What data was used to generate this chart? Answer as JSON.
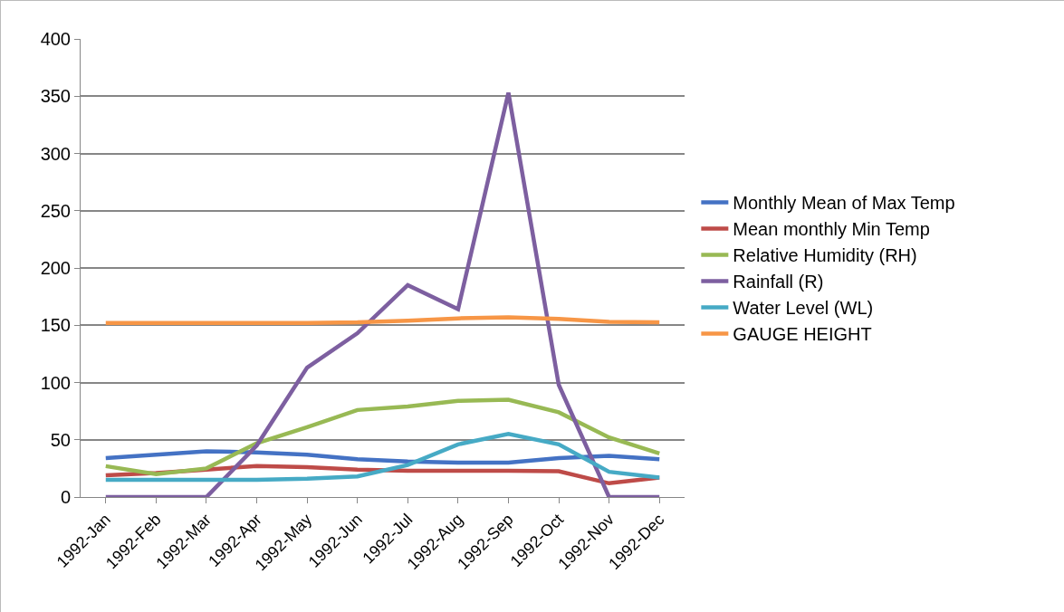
{
  "chart_data": {
    "type": "line",
    "categories": [
      "1992-Jan",
      "1992-Feb",
      "1992-Mar",
      "1992-Apr",
      "1992-May",
      "1992-Jun",
      "1992-Jul",
      "1992-Aug",
      "1992-Sep",
      "1992-Oct",
      "1992-Nov",
      "1992-Dec"
    ],
    "series": [
      {
        "name": "Monthly Mean of Max Temp",
        "color": "#4472c4",
        "values": [
          34,
          37,
          40,
          39,
          37,
          33,
          31,
          30,
          30,
          34,
          36,
          33
        ]
      },
      {
        "name": "Mean monthly Min Temp",
        "color": "#be4b48",
        "values": [
          19,
          21,
          24,
          27,
          26,
          24,
          23,
          23,
          23,
          22.5,
          12,
          17
        ]
      },
      {
        "name": "Relative Humidity (RH)",
        "color": "#98b954",
        "values": [
          27,
          20,
          25,
          47,
          61,
          76,
          79,
          84,
          85,
          74,
          52,
          38
        ]
      },
      {
        "name": "Rainfall (R)",
        "color": "#7d5fa0",
        "values": [
          0,
          0,
          0,
          45,
          113,
          143,
          185,
          164,
          353,
          98,
          0,
          0
        ]
      },
      {
        "name": "Water Level (WL)",
        "color": "#46aac5",
        "values": [
          15,
          15,
          15,
          15,
          16,
          18,
          28,
          46,
          55,
          46,
          22,
          17
        ]
      },
      {
        "name": "GAUGE HEIGHT",
        "color": "#f79646",
        "values": [
          152,
          152,
          152,
          152,
          152,
          152.5,
          154,
          156,
          157,
          155.5,
          153,
          152.5
        ]
      }
    ],
    "ylim": [
      0,
      400
    ],
    "yticks": [
      0,
      50,
      100,
      150,
      200,
      250,
      300,
      350,
      400
    ],
    "grid": "y",
    "legend": "right",
    "marker": "none",
    "line_style": "solid"
  }
}
